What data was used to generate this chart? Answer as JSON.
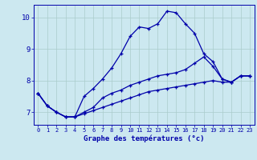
{
  "xlabel": "Graphe des températures (°c)",
  "background_color": "#cce8f0",
  "grid_color": "#aacccc",
  "line_color": "#0000aa",
  "ylim": [
    6.6,
    10.4
  ],
  "xlim": [
    -0.5,
    23.5
  ],
  "yticks": [
    7,
    8,
    9,
    10
  ],
  "xticks": [
    0,
    1,
    2,
    3,
    4,
    5,
    6,
    7,
    8,
    9,
    10,
    11,
    12,
    13,
    14,
    15,
    16,
    17,
    18,
    19,
    20,
    21,
    22,
    23
  ],
  "series": [
    {
      "x": [
        0,
        1,
        2,
        3,
        4,
        5,
        6,
        7,
        8,
        9,
        10,
        11,
        12,
        13,
        14,
        15,
        16,
        17,
        18,
        19,
        20,
        21,
        22,
        23
      ],
      "y": [
        7.6,
        7.2,
        7.0,
        6.85,
        6.85,
        7.5,
        7.75,
        8.05,
        8.4,
        8.85,
        9.4,
        9.7,
        9.65,
        9.8,
        10.2,
        10.15,
        9.8,
        9.5,
        8.85,
        8.6,
        8.05,
        7.95,
        8.15,
        8.15
      ]
    },
    {
      "x": [
        0,
        1,
        2,
        3,
        4,
        5,
        6,
        7,
        8,
        9,
        10,
        11,
        12,
        13,
        14,
        15,
        16,
        17,
        18,
        19,
        20,
        21,
        22,
        23
      ],
      "y": [
        7.6,
        7.2,
        7.0,
        6.85,
        6.85,
        7.0,
        7.15,
        7.45,
        7.6,
        7.7,
        7.85,
        7.95,
        8.05,
        8.15,
        8.2,
        8.25,
        8.35,
        8.55,
        8.75,
        8.45,
        8.05,
        7.95,
        8.15,
        8.15
      ]
    },
    {
      "x": [
        0,
        1,
        2,
        3,
        4,
        5,
        6,
        7,
        8,
        9,
        10,
        11,
        12,
        13,
        14,
        15,
        16,
        17,
        18,
        19,
        20,
        21,
        22,
        23
      ],
      "y": [
        7.6,
        7.2,
        7.0,
        6.85,
        6.85,
        6.95,
        7.05,
        7.15,
        7.25,
        7.35,
        7.45,
        7.55,
        7.65,
        7.7,
        7.75,
        7.8,
        7.85,
        7.9,
        7.95,
        8.0,
        7.95,
        7.95,
        8.15,
        8.15
      ]
    }
  ]
}
